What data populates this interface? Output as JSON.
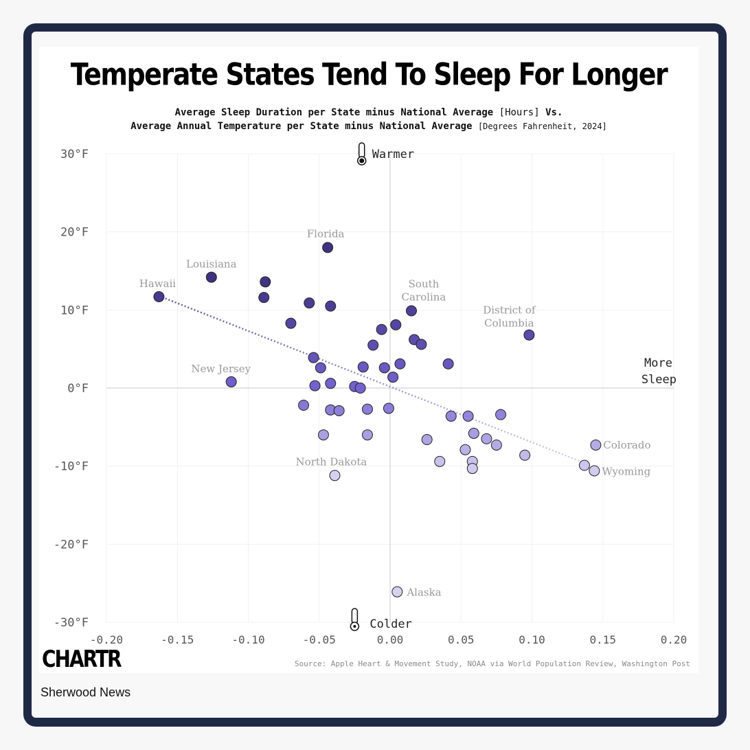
{
  "header": {
    "title": "Temperate States Tend To Sleep For Longer",
    "subtitle_line1_bold": "Average Sleep Duration per State minus National Average",
    "subtitle_line1_unit": "[Hours]",
    "subtitle_line1_end": "Vs.",
    "subtitle_line2_bold": "Average Annual Temperature per State minus National Average",
    "subtitle_line2_unit": "[Degrees Fahrenheit, 2024]"
  },
  "footer": {
    "logo": "CHARTR",
    "source": "Source: Apple Heart & Movement Study, NOAA via World Population Review, Washington Post",
    "brand": "Sherwood News"
  },
  "chart_data": {
    "type": "scatter",
    "xlim": [
      -0.2,
      0.2
    ],
    "ylim": [
      -30,
      30
    ],
    "x_ticks": [
      -0.2,
      -0.15,
      -0.1,
      -0.05,
      0.0,
      0.05,
      0.1,
      0.15,
      0.2
    ],
    "x_tick_labels": [
      "-0.20",
      "-0.15",
      "-0.10",
      "-0.05",
      "0.00",
      "0.05",
      "0.10",
      "0.15",
      "0.20"
    ],
    "y_ticks": [
      30,
      20,
      10,
      0,
      -10,
      -20,
      -30
    ],
    "y_tick_labels": [
      "30°F",
      "20°F",
      "10°F",
      "0°F",
      "-10°F",
      "-20°F",
      "-30°F"
    ],
    "grid": true,
    "axis_annotations": {
      "top": "Warmer",
      "bottom": "Colder",
      "right_line1": "More",
      "right_line2": "Sleep"
    },
    "colors": {
      "warm": "#3f3280",
      "mid": "#7462d0",
      "cool": "#d6d1f0",
      "trend": "#5c4f9e",
      "label": "#999999"
    },
    "trend_line": {
      "x": [
        -0.163,
        0.14
      ],
      "y": [
        11.8,
        -9.8
      ]
    },
    "points": [
      {
        "x": -0.163,
        "y": 11.7,
        "label": "Hawaii"
      },
      {
        "x": -0.126,
        "y": 14.2,
        "label": "Louisiana"
      },
      {
        "x": -0.044,
        "y": 18.0,
        "label": "Florida"
      },
      {
        "x": 0.015,
        "y": 9.9,
        "label": "South Carolina"
      },
      {
        "x": 0.098,
        "y": 6.8,
        "label": "District of Columbia"
      },
      {
        "x": -0.112,
        "y": 0.8,
        "label": "New Jersey"
      },
      {
        "x": 0.145,
        "y": -7.3,
        "label": "Colorado"
      },
      {
        "x": 0.144,
        "y": -10.6,
        "label": "Wyoming"
      },
      {
        "x": -0.039,
        "y": -11.2,
        "label": "North Dakota"
      },
      {
        "x": 0.005,
        "y": -26.1,
        "label": "Alaska"
      },
      {
        "x": -0.088,
        "y": 13.6
      },
      {
        "x": -0.089,
        "y": 11.6
      },
      {
        "x": -0.057,
        "y": 10.9
      },
      {
        "x": -0.042,
        "y": 10.5
      },
      {
        "x": -0.07,
        "y": 8.3
      },
      {
        "x": -0.006,
        "y": 7.5
      },
      {
        "x": 0.004,
        "y": 8.1
      },
      {
        "x": -0.012,
        "y": 5.5
      },
      {
        "x": 0.017,
        "y": 6.2
      },
      {
        "x": 0.022,
        "y": 5.6
      },
      {
        "x": -0.054,
        "y": 3.9
      },
      {
        "x": -0.049,
        "y": 2.6
      },
      {
        "x": -0.019,
        "y": 2.7
      },
      {
        "x": -0.004,
        "y": 2.6
      },
      {
        "x": 0.007,
        "y": 3.1
      },
      {
        "x": 0.041,
        "y": 3.1
      },
      {
        "x": 0.002,
        "y": 1.4
      },
      {
        "x": -0.053,
        "y": 0.3
      },
      {
        "x": -0.042,
        "y": 0.6
      },
      {
        "x": -0.025,
        "y": 0.2
      },
      {
        "x": -0.021,
        "y": 0.0
      },
      {
        "x": -0.061,
        "y": -2.2
      },
      {
        "x": -0.042,
        "y": -2.8
      },
      {
        "x": -0.036,
        "y": -2.9
      },
      {
        "x": -0.016,
        "y": -2.7
      },
      {
        "x": -0.001,
        "y": -2.6
      },
      {
        "x": 0.043,
        "y": -3.6
      },
      {
        "x": 0.055,
        "y": -3.6
      },
      {
        "x": 0.078,
        "y": -3.4
      },
      {
        "x": -0.047,
        "y": -6.0
      },
      {
        "x": -0.016,
        "y": -6.0
      },
      {
        "x": 0.026,
        "y": -6.6
      },
      {
        "x": 0.059,
        "y": -5.8
      },
      {
        "x": 0.068,
        "y": -6.5
      },
      {
        "x": 0.075,
        "y": -7.3
      },
      {
        "x": 0.053,
        "y": -7.9
      },
      {
        "x": 0.095,
        "y": -8.6
      },
      {
        "x": 0.035,
        "y": -9.4
      },
      {
        "x": 0.058,
        "y": -9.4
      },
      {
        "x": 0.058,
        "y": -10.3
      },
      {
        "x": 0.137,
        "y": -9.9
      }
    ]
  }
}
